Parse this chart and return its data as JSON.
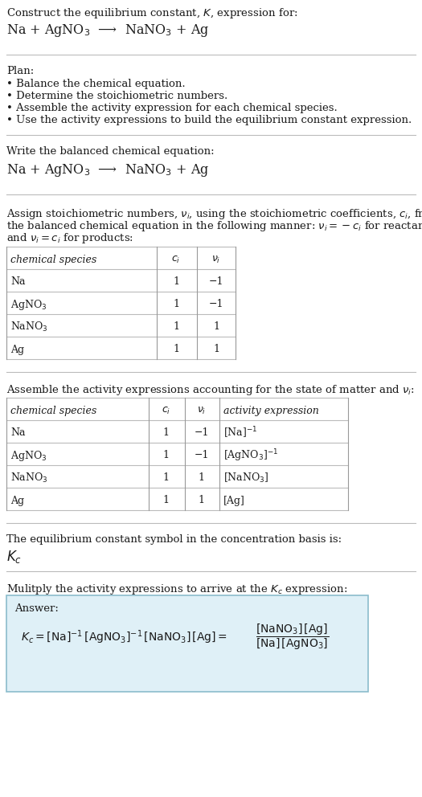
{
  "title_line1": "Construct the equilibrium constant, $K$, expression for:",
  "reaction_header": "Na + AgNO$_3$  ⟶  NaNO$_3$ + Ag",
  "plan_title": "Plan:",
  "plan_bullets": [
    "• Balance the chemical equation.",
    "• Determine the stoichiometric numbers.",
    "• Assemble the activity expression for each chemical species.",
    "• Use the activity expressions to build the equilibrium constant expression."
  ],
  "section2_title": "Write the balanced chemical equation:",
  "section2_reaction": "Na + AgNO$_3$  ⟶  NaNO$_3$ + Ag",
  "section3_intro": "Assign stoichiometric numbers, $\\nu_i$, using the stoichiometric coefficients, $c_i$, from\nthe balanced chemical equation in the following manner: $\\nu_i = -c_i$ for reactants\nand $\\nu_i = c_i$ for products:",
  "table1_headers": [
    "chemical species",
    "$c_i$",
    "$\\nu_i$"
  ],
  "table1_rows": [
    [
      "Na",
      "1",
      "−1"
    ],
    [
      "AgNO$_3$",
      "1",
      "−1"
    ],
    [
      "NaNO$_3$",
      "1",
      "1"
    ],
    [
      "Ag",
      "1",
      "1"
    ]
  ],
  "section4_intro": "Assemble the activity expressions accounting for the state of matter and $\\nu_i$:",
  "table2_headers": [
    "chemical species",
    "$c_i$",
    "$\\nu_i$",
    "activity expression"
  ],
  "table2_rows": [
    [
      "Na",
      "1",
      "−1",
      "[Na]$^{-1}$"
    ],
    [
      "AgNO$_3$",
      "1",
      "−1",
      "[AgNO$_3$]$^{-1}$"
    ],
    [
      "NaNO$_3$",
      "1",
      "1",
      "[NaNO$_3$]"
    ],
    [
      "Ag",
      "1",
      "1",
      "[Ag]"
    ]
  ],
  "section5_intro": "The equilibrium constant symbol in the concentration basis is:",
  "section5_symbol": "$K_c$",
  "section6_intro": "Mulitply the activity expressions to arrive at the $K_c$ expression:",
  "answer_label": "Answer:",
  "bg_color": "#ffffff",
  "text_color": "#1a1a1a",
  "table_border_color": "#999999",
  "answer_box_bg": "#dff0f7",
  "answer_box_border": "#8bbccc",
  "separator_color": "#bbbbbb",
  "font_size_body": 9.5,
  "font_size_table": 9.0,
  "font_size_reaction": 11.5
}
